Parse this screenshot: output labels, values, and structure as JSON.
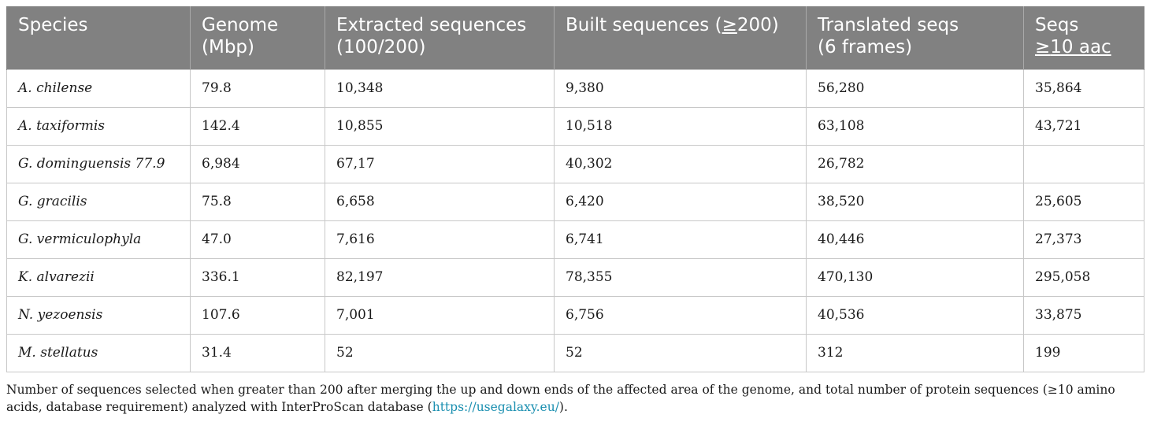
{
  "table": {
    "headers": [
      {
        "line1": "Species",
        "line2": ""
      },
      {
        "line1": "Genome",
        "line2": "(Mbp)"
      },
      {
        "line1": "Extracted sequences",
        "line2": "(100/200)"
      },
      {
        "line1": "Built sequences (",
        "sym": "≥",
        "rest": "200)"
      },
      {
        "line1": "Translated seqs",
        "line2": "(6 frames)"
      },
      {
        "line1": "Seqs",
        "sym": "≥",
        "rest": "10 aac"
      }
    ],
    "rows": [
      [
        "A. chilense",
        "79.8",
        "10,348",
        "9,380",
        "56,280",
        "35,864"
      ],
      [
        "A. taxiformis",
        "142.4",
        "10,855",
        "10,518",
        "63,108",
        "43,721"
      ],
      [
        "G. dominguensis 77.9",
        "6,984",
        "67,17",
        "40,302",
        "26,782",
        ""
      ],
      [
        "G. gracilis",
        "75.8",
        "6,658",
        "6,420",
        "38,520",
        "25,605"
      ],
      [
        "G. vermiculophyla",
        "47.0",
        "7,616",
        "6,741",
        "40,446",
        "27,373"
      ],
      [
        "K. alvarezii",
        "336.1",
        "82,197",
        "78,355",
        "470,130",
        "295,058"
      ],
      [
        "N. yezoensis",
        "107.6",
        "7,001",
        "6,756",
        "40,536",
        "33,875"
      ],
      [
        "M. stellatus",
        "31.4",
        "52",
        "52",
        "312",
        "199"
      ]
    ]
  },
  "caption": {
    "text_before": "Number of sequences selected when greater than 200 after merging the up and down ends of the affected area of the genome, and total number of protein sequences (≥10 amino acids, database requirement) analyzed with InterProScan database (",
    "link": "https://usegalaxy.eu/",
    "text_after": ")."
  },
  "colors": {
    "header_bg": "#818181",
    "header_text": "#ffffff",
    "link": "#1a8fb0"
  }
}
